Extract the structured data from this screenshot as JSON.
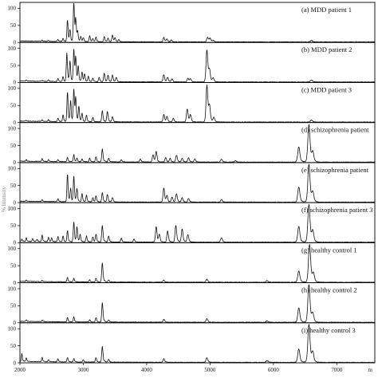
{
  "chart_data": {
    "type": "line",
    "x_ticks": [
      2000,
      3000,
      4000,
      5000,
      6000,
      7000
    ],
    "x_range": [
      2000,
      7600
    ],
    "y_ticks": [
      0,
      50,
      100
    ],
    "y_range": [
      0,
      115
    ],
    "x_axis_partial_label": "m",
    "y_axis_partial_label": "% Intensity",
    "panels": [
      {
        "label": "(a) MDD patient 1",
        "peaks": [
          [
            2350,
            3
          ],
          [
            2450,
            3
          ],
          [
            2600,
            6
          ],
          [
            2680,
            8
          ],
          [
            2750,
            58
          ],
          [
            2790,
            30
          ],
          [
            2850,
            110
          ],
          [
            2880,
            55
          ],
          [
            2910,
            24
          ],
          [
            2960,
            14
          ],
          [
            3000,
            10
          ],
          [
            3100,
            16
          ],
          [
            3150,
            8
          ],
          [
            3200,
            12
          ],
          [
            3330,
            14
          ],
          [
            3390,
            10
          ],
          [
            3460,
            18
          ],
          [
            3500,
            10
          ],
          [
            3560,
            6
          ],
          [
            4270,
            12
          ],
          [
            4320,
            7
          ],
          [
            4390,
            5
          ],
          [
            4960,
            12
          ],
          [
            5000,
            9
          ],
          [
            5050,
            4
          ],
          [
            6600,
            4
          ]
        ]
      },
      {
        "label": "(b) MDD patient 2",
        "peaks": [
          [
            2100,
            3
          ],
          [
            2350,
            3
          ],
          [
            2450,
            4
          ],
          [
            2600,
            8
          ],
          [
            2680,
            14
          ],
          [
            2740,
            78
          ],
          [
            2790,
            55
          ],
          [
            2850,
            88
          ],
          [
            2880,
            62
          ],
          [
            2920,
            40
          ],
          [
            2980,
            26
          ],
          [
            3020,
            20
          ],
          [
            3080,
            15
          ],
          [
            3150,
            10
          ],
          [
            3250,
            12
          ],
          [
            3330,
            24
          ],
          [
            3390,
            18
          ],
          [
            3460,
            18
          ],
          [
            3520,
            12
          ],
          [
            4270,
            20
          ],
          [
            4330,
            12
          ],
          [
            4400,
            8
          ],
          [
            4650,
            10
          ],
          [
            4690,
            8
          ],
          [
            4950,
            85
          ],
          [
            4990,
            30
          ],
          [
            5050,
            10
          ],
          [
            6600,
            5
          ]
        ]
      },
      {
        "label": "(c) MDD patient 3",
        "peaks": [
          [
            2100,
            2
          ],
          [
            2350,
            4
          ],
          [
            2450,
            5
          ],
          [
            2600,
            10
          ],
          [
            2680,
            18
          ],
          [
            2750,
            80
          ],
          [
            2800,
            55
          ],
          [
            2850,
            88
          ],
          [
            2880,
            60
          ],
          [
            2930,
            40
          ],
          [
            2980,
            22
          ],
          [
            3050,
            18
          ],
          [
            3150,
            12
          ],
          [
            3300,
            30
          ],
          [
            3380,
            28
          ],
          [
            3460,
            14
          ],
          [
            4270,
            20
          ],
          [
            4320,
            14
          ],
          [
            4420,
            10
          ],
          [
            4640,
            35
          ],
          [
            4690,
            18
          ],
          [
            4950,
            98
          ],
          [
            4990,
            40
          ],
          [
            5060,
            12
          ],
          [
            6600,
            5
          ]
        ]
      },
      {
        "label": "(d) schizophrenia patient",
        "peaks": [
          [
            2100,
            4
          ],
          [
            2350,
            8
          ],
          [
            2450,
            5
          ],
          [
            2600,
            6
          ],
          [
            2750,
            12
          ],
          [
            2850,
            20
          ],
          [
            2900,
            10
          ],
          [
            2980,
            8
          ],
          [
            3100,
            10
          ],
          [
            3200,
            14
          ],
          [
            3300,
            35
          ],
          [
            3400,
            10
          ],
          [
            3600,
            6
          ],
          [
            3900,
            8
          ],
          [
            4100,
            20
          ],
          [
            4150,
            28
          ],
          [
            4300,
            12
          ],
          [
            4370,
            10
          ],
          [
            4470,
            18
          ],
          [
            4560,
            10
          ],
          [
            4660,
            12
          ],
          [
            4760,
            8
          ],
          [
            5180,
            8
          ],
          [
            5400,
            4
          ],
          [
            6400,
            40
          ],
          [
            6560,
            100
          ],
          [
            6620,
            25
          ]
        ]
      },
      {
        "label": "(e) schizophrenia patient",
        "peaks": [
          [
            2100,
            3
          ],
          [
            2350,
            5
          ],
          [
            2600,
            8
          ],
          [
            2750,
            75
          ],
          [
            2800,
            35
          ],
          [
            2850,
            70
          ],
          [
            2900,
            35
          ],
          [
            2980,
            22
          ],
          [
            3050,
            18
          ],
          [
            3150,
            12
          ],
          [
            3200,
            16
          ],
          [
            3300,
            25
          ],
          [
            3380,
            20
          ],
          [
            3460,
            12
          ],
          [
            4270,
            38
          ],
          [
            4320,
            16
          ],
          [
            4400,
            14
          ],
          [
            4470,
            22
          ],
          [
            4560,
            12
          ],
          [
            4660,
            10
          ],
          [
            5180,
            7
          ],
          [
            6400,
            40
          ],
          [
            6560,
            100
          ],
          [
            6620,
            25
          ]
        ]
      },
      {
        "label": "(f) schizophrenia patient 3",
        "peaks": [
          [
            2030,
            6
          ],
          [
            2100,
            10
          ],
          [
            2200,
            8
          ],
          [
            2270,
            6
          ],
          [
            2350,
            18
          ],
          [
            2450,
            12
          ],
          [
            2500,
            10
          ],
          [
            2600,
            14
          ],
          [
            2680,
            16
          ],
          [
            2750,
            30
          ],
          [
            2850,
            55
          ],
          [
            2900,
            40
          ],
          [
            2950,
            20
          ],
          [
            3050,
            16
          ],
          [
            3150,
            14
          ],
          [
            3200,
            20
          ],
          [
            3300,
            45
          ],
          [
            3400,
            16
          ],
          [
            3600,
            10
          ],
          [
            3800,
            8
          ],
          [
            4150,
            42
          ],
          [
            4200,
            20
          ],
          [
            4330,
            30
          ],
          [
            4460,
            45
          ],
          [
            4560,
            35
          ],
          [
            4650,
            20
          ],
          [
            5180,
            12
          ],
          [
            6400,
            42
          ],
          [
            6560,
            100
          ],
          [
            6620,
            28
          ]
        ]
      },
      {
        "label": "(g) healthy control 1",
        "peaks": [
          [
            2100,
            3
          ],
          [
            2350,
            3
          ],
          [
            2750,
            12
          ],
          [
            2850,
            10
          ],
          [
            3100,
            6
          ],
          [
            3200,
            10
          ],
          [
            3300,
            52
          ],
          [
            3400,
            6
          ],
          [
            4270,
            6
          ],
          [
            4950,
            8
          ],
          [
            5900,
            4
          ],
          [
            6400,
            30
          ],
          [
            6570,
            100
          ],
          [
            6630,
            22
          ]
        ]
      },
      {
        "label": "(h) healthy control 2",
        "peaks": [
          [
            2100,
            4
          ],
          [
            2350,
            4
          ],
          [
            2750,
            12
          ],
          [
            2850,
            14
          ],
          [
            3100,
            6
          ],
          [
            3200,
            12
          ],
          [
            3300,
            52
          ],
          [
            3400,
            6
          ],
          [
            4270,
            8
          ],
          [
            4950,
            10
          ],
          [
            5900,
            4
          ],
          [
            6400,
            38
          ],
          [
            6560,
            100
          ],
          [
            6620,
            22
          ]
        ]
      },
      {
        "label": "(i) healthy control 3",
        "peaks": [
          [
            2030,
            22
          ],
          [
            2100,
            10
          ],
          [
            2350,
            12
          ],
          [
            2450,
            6
          ],
          [
            2600,
            8
          ],
          [
            2750,
            12
          ],
          [
            2850,
            10
          ],
          [
            3000,
            6
          ],
          [
            3200,
            12
          ],
          [
            3300,
            42
          ],
          [
            3400,
            8
          ],
          [
            4270,
            10
          ],
          [
            4950,
            12
          ],
          [
            5900,
            5
          ],
          [
            6400,
            35
          ],
          [
            6560,
            100
          ],
          [
            6620,
            25
          ]
        ]
      }
    ]
  }
}
